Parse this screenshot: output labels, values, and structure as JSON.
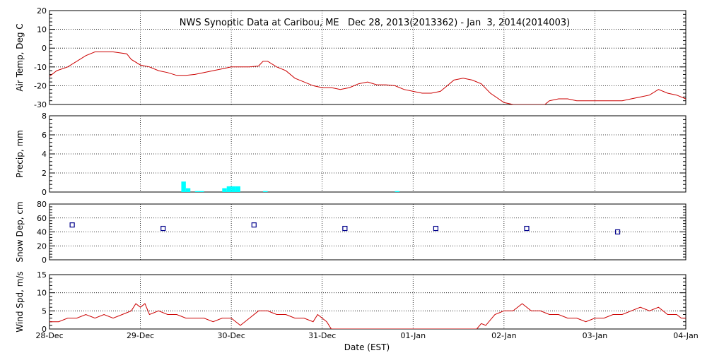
{
  "chart_data": {
    "type": "line",
    "title": "NWS Synoptic Data at Caribou, ME   Dec 28, 2013(2013362) - Jan  3, 2014(2014003)",
    "xlabel": "Date (EST)",
    "x_ticks": [
      "28-Dec",
      "29-Dec",
      "30-Dec",
      "31-Dec",
      "01-Jan",
      "02-Jan",
      "03-Jan",
      "04-Jan"
    ],
    "x_range_days": [
      0,
      7
    ],
    "grid": true,
    "panels": [
      {
        "id": "air_temp",
        "type": "line",
        "ylabel": "Air Temp, Deg C",
        "ylim": [
          -30,
          20
        ],
        "yticks": [
          -30,
          -20,
          -10,
          0,
          10,
          20
        ],
        "color": "#cc0000",
        "series": [
          {
            "x": [
              0,
              0.08,
              0.2,
              0.3,
              0.4,
              0.5,
              0.6,
              0.7,
              0.85,
              0.9,
              1.0,
              1.1,
              1.2,
              1.3,
              1.4,
              1.5,
              1.6,
              1.7,
              1.8,
              1.9,
              2.0,
              2.05,
              2.1,
              2.2,
              2.3,
              2.35,
              2.4,
              2.5,
              2.6,
              2.7,
              2.8,
              2.9,
              3.0,
              3.1,
              3.2,
              3.3,
              3.4,
              3.5,
              3.6,
              3.7,
              3.8,
              3.9,
              4.0,
              4.1,
              4.2,
              4.3,
              4.35,
              4.45,
              4.55,
              4.65,
              4.75,
              4.85,
              5.0,
              5.1,
              5.15,
              5.25,
              5.35,
              5.45,
              5.5,
              5.6,
              5.7,
              5.8,
              5.9,
              6.0,
              6.1,
              6.2,
              6.3,
              6.4,
              6.5,
              6.6,
              6.7,
              6.8,
              6.9,
              7.0
            ],
            "y": [
              -15,
              -12,
              -10,
              -7,
              -4,
              -2,
              -2,
              -2,
              -3,
              -6,
              -9,
              -10,
              -12,
              -13,
              -14.5,
              -14.5,
              -14,
              -13,
              -12,
              -11,
              -10,
              -10,
              -10,
              -10,
              -9.5,
              -7,
              -7,
              -10,
              -12,
              -16,
              -18,
              -20,
              -21,
              -21,
              -22,
              -21,
              -19,
              -18,
              -19.5,
              -19.5,
              -20,
              -22,
              -23,
              -24,
              -24,
              -23,
              -21,
              -17,
              -16,
              -17,
              -19,
              -24,
              -29,
              -30,
              -30,
              -31,
              -31,
              -31,
              -28,
              -27,
              -27,
              -28,
              -28,
              -28,
              -28,
              -28,
              -28,
              -27,
              -26,
              -25,
              -22,
              -24,
              -25,
              -27
            ]
          }
        ]
      },
      {
        "id": "precip",
        "type": "bar",
        "ylabel": "Precip, mm",
        "ylim": [
          0,
          8
        ],
        "yticks": [
          0,
          2,
          4,
          6,
          8
        ],
        "color": "#00ffff",
        "series": [
          {
            "x": [
              1.45,
              1.5,
              1.6,
              1.65,
              1.9,
              1.95,
              2.0,
              2.05,
              2.35,
              3.8
            ],
            "y": [
              1.1,
              0.4,
              0.1,
              0.1,
              0.4,
              0.6,
              0.6,
              0.6,
              0.1,
              0.1
            ]
          }
        ]
      },
      {
        "id": "snow_depth",
        "type": "scatter",
        "ylabel": "Snow Dep, cm",
        "ylim": [
          0,
          80
        ],
        "yticks": [
          0,
          20,
          40,
          60,
          80
        ],
        "color": "#00008b",
        "series": [
          {
            "x": [
              0.25,
              1.25,
              2.25,
              3.25,
              4.25,
              5.25,
              6.25
            ],
            "y": [
              50,
              45,
              50,
              45,
              45,
              45,
              40
            ]
          }
        ]
      },
      {
        "id": "wind_speed",
        "type": "line",
        "ylabel": "Wind Spd, m/s",
        "ylim": [
          0,
          15
        ],
        "yticks": [
          0,
          5,
          10,
          15
        ],
        "color": "#cc0000",
        "series": [
          {
            "x": [
              0,
              0.1,
              0.2,
              0.3,
              0.4,
              0.5,
              0.6,
              0.7,
              0.8,
              0.9,
              0.95,
              1.0,
              1.05,
              1.1,
              1.2,
              1.3,
              1.4,
              1.5,
              1.6,
              1.7,
              1.8,
              1.9,
              2.0,
              2.1,
              2.2,
              2.3,
              2.4,
              2.5,
              2.6,
              2.7,
              2.8,
              2.9,
              2.95,
              3.0,
              3.05,
              3.1,
              3.2,
              3.3,
              3.4,
              3.5,
              3.6,
              3.7,
              3.8,
              3.9,
              4.0,
              4.1,
              4.2,
              4.3,
              4.4,
              4.5,
              4.6,
              4.7,
              4.75,
              4.8,
              4.9,
              5.0,
              5.1,
              5.2,
              5.3,
              5.4,
              5.5,
              5.6,
              5.7,
              5.8,
              5.9,
              6.0,
              6.1,
              6.2,
              6.3,
              6.4,
              6.5,
              6.6,
              6.7,
              6.8,
              6.9,
              6.95,
              7.0
            ],
            "y": [
              2,
              2,
              3,
              3,
              4,
              3,
              4,
              3,
              4,
              5,
              7,
              6,
              7,
              4,
              5,
              4,
              4,
              3,
              3,
              3,
              2,
              3,
              3,
              1,
              3,
              5,
              5,
              4,
              4,
              3,
              3,
              2,
              4,
              3,
              2,
              0,
              0,
              0,
              0,
              0,
              0,
              0,
              0,
              0,
              0,
              0,
              0,
              0,
              0,
              0,
              0,
              0,
              1.5,
              1,
              4,
              5,
              5,
              7,
              5,
              5,
              4,
              4,
              3,
              3,
              2,
              3,
              3,
              4,
              4,
              5,
              6,
              5,
              6,
              4,
              4,
              3,
              3
            ]
          }
        ]
      }
    ]
  }
}
